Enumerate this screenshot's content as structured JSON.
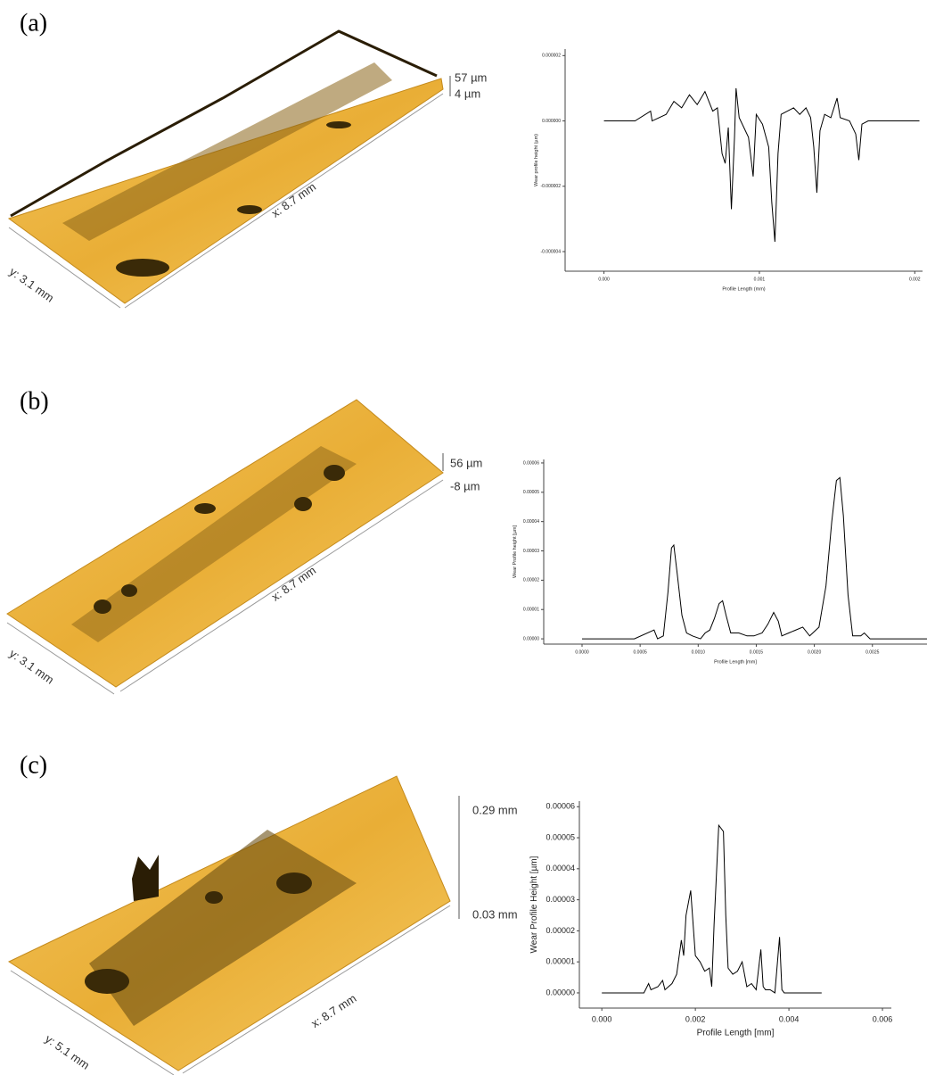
{
  "panels": [
    {
      "label": "(a)",
      "z_top": "57 µm",
      "z_bottom": "4 µm",
      "x_size": "x: 8.7 mm",
      "y_size": "y: 3.1 mm"
    },
    {
      "label": "(b)",
      "z_top": "56 µm",
      "z_bottom": "-8 µm",
      "x_size": "x: 8.7 mm",
      "y_size": "y: 3.1 mm"
    },
    {
      "label": "(c)",
      "z_top": "0.29 mm",
      "z_bottom": "0.03 mm",
      "x_size": "x: 8.7 mm",
      "y_size": "y: 5.1 mm"
    }
  ],
  "chart_data": [
    {
      "type": "line",
      "x_label": "Profile Length (mm)",
      "y_label": "Wear profile height (µm)",
      "color": "#000000",
      "xlim": [
        -0.00025,
        0.00205
      ],
      "ylim": [
        -4.6e-06,
        2.2e-06
      ],
      "xticks": [
        {
          "value": 0,
          "label": "0.000"
        },
        0.001,
        0.002
      ],
      "yticks": [
        2e-06,
        {
          "value": 0,
          "label": "0.000000"
        },
        -2e-06,
        -4e-06
      ],
      "x": [
        0,
        0.0002,
        0.0003,
        0.00031,
        0.0004,
        0.00045,
        0.0005,
        0.00055,
        0.0006,
        0.00065,
        0.0007,
        0.00073,
        0.00076,
        0.00078,
        0.0008,
        0.00082,
        0.00084,
        0.00085,
        0.00087,
        0.0009,
        0.00093,
        0.00096,
        0.00098,
        0.00102,
        0.00106,
        0.00108,
        0.0011,
        0.00112,
        0.00114,
        0.00118,
        0.00122,
        0.00126,
        0.0013,
        0.00133,
        0.00135,
        0.00137,
        0.00139,
        0.00142,
        0.00146,
        0.0015,
        0.00152,
        0.00158,
        0.00162,
        0.00164,
        0.00166,
        0.0017,
        0.00203
      ],
      "values": [
        0,
        0,
        3e-07,
        0,
        2e-07,
        6e-07,
        4e-07,
        8e-07,
        5e-07,
        9e-07,
        3e-07,
        4e-07,
        -1e-06,
        -1.3e-06,
        -2e-07,
        -2.7e-06,
        -5e-07,
        1e-06,
        1e-07,
        -2e-07,
        -5e-07,
        -1.7e-06,
        2e-07,
        -1e-07,
        -8e-07,
        -2.5e-06,
        -3.7e-06,
        -1e-06,
        2e-07,
        3e-07,
        4e-07,
        2e-07,
        4e-07,
        1e-07,
        -8e-07,
        -2.2e-06,
        -3e-07,
        2e-07,
        1e-07,
        7e-07,
        1e-07,
        0,
        -4e-07,
        -1.2e-06,
        -1e-07,
        0,
        0
      ]
    },
    {
      "type": "line",
      "x_label": "Profile Length [mm]",
      "y_label": "Wear Profile height [µm]",
      "color": "#000000",
      "xlim": [
        -0.00033,
        0.00297
      ],
      "ylim": [
        -1.8e-06,
        6.12e-05
      ],
      "xticks": [
        {
          "value": 0,
          "label": "0.0000"
        },
        0.0005,
        {
          "value": 0.001,
          "label": "0.0010"
        },
        0.0015,
        {
          "value": 0.002,
          "label": "0.0020"
        },
        0.0025
      ],
      "yticks": [
        {
          "value": 0,
          "label": "0.00000"
        },
        1e-05,
        2e-05,
        3e-05,
        4e-05,
        5e-05,
        6e-05
      ],
      "x": [
        0,
        0.00045,
        0.00062,
        0.00065,
        0.0007,
        0.00074,
        0.00077,
        0.00079,
        0.00082,
        0.00086,
        0.0009,
        0.00095,
        0.00102,
        0.00106,
        0.0011,
        0.00114,
        0.00118,
        0.00121,
        0.00124,
        0.00128,
        0.00135,
        0.00142,
        0.00148,
        0.00155,
        0.0016,
        0.00165,
        0.00169,
        0.00172,
        0.00178,
        0.00184,
        0.0019,
        0.00196,
        0.00204,
        0.0021,
        0.00215,
        0.00219,
        0.00222,
        0.00225,
        0.00229,
        0.00233,
        0.0024,
        0.00243,
        0.00248,
        0.00297
      ],
      "values": [
        0,
        0,
        3e-06,
        0,
        1e-06,
        1.6e-05,
        3.1e-05,
        3.2e-05,
        2.2e-05,
        8e-06,
        2e-06,
        1e-06,
        0,
        2e-06,
        3e-06,
        7e-06,
        1.2e-05,
        1.3e-05,
        8e-06,
        2e-06,
        2e-06,
        1e-06,
        1e-06,
        2e-06,
        5e-06,
        9e-06,
        6e-06,
        1e-06,
        2e-06,
        3e-06,
        4e-06,
        1e-06,
        4e-06,
        1.8e-05,
        4e-05,
        5.4e-05,
        5.5e-05,
        4.2e-05,
        1.5e-05,
        1e-06,
        1e-06,
        2e-06,
        0,
        0
      ]
    },
    {
      "type": "line",
      "x_label": "Profile Length [mm]",
      "y_label": "Wear Profile Height [µm]",
      "color": "#000000",
      "xlim": [
        -0.00048,
        0.00619
      ],
      "ylim": [
        -4.9e-06,
        6.18e-05
      ],
      "xticks": [
        {
          "value": 0,
          "label": "0.000"
        },
        0.002,
        0.004,
        0.006
      ],
      "yticks": [
        {
          "value": 0,
          "label": "0.00000"
        },
        1e-05,
        2e-05,
        3e-05,
        4e-05,
        5e-05,
        6e-05
      ],
      "x": [
        0,
        0.0009,
        0.001,
        0.00105,
        0.0012,
        0.0013,
        0.00135,
        0.0015,
        0.0016,
        0.0017,
        0.00175,
        0.0018,
        0.0019,
        0.002,
        0.0021,
        0.0022,
        0.0023,
        0.00235,
        0.0024,
        0.0025,
        0.0026,
        0.00265,
        0.0027,
        0.0028,
        0.0029,
        0.003,
        0.0031,
        0.0032,
        0.0033,
        0.0034,
        0.00345,
        0.0035,
        0.0036,
        0.0037,
        0.0038,
        0.00385,
        0.0039,
        0.0047
      ],
      "values": [
        0,
        0,
        3e-06,
        1e-06,
        2e-06,
        4e-06,
        1e-06,
        3e-06,
        6e-06,
        1.7e-05,
        1.2e-05,
        2.5e-05,
        3.3e-05,
        1.2e-05,
        1e-05,
        7e-06,
        8e-06,
        2e-06,
        2.2e-05,
        5.4e-05,
        5.2e-05,
        2.5e-05,
        8e-06,
        6e-06,
        7e-06,
        1e-05,
        2e-06,
        3e-06,
        1e-06,
        1.4e-05,
        2e-06,
        1e-06,
        1e-06,
        0,
        1.8e-05,
        1e-06,
        0,
        0
      ]
    }
  ]
}
